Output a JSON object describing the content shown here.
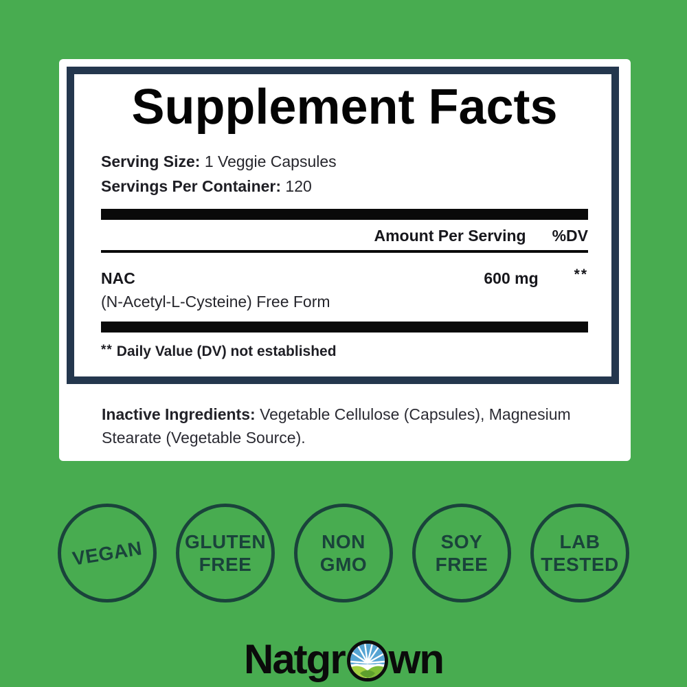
{
  "colors": {
    "background": "#48ac50",
    "panel_border": "#24374e",
    "badge": "#1a433b",
    "bar": "#0a0a0a"
  },
  "supplement_panel": {
    "title": "Supplement Facts",
    "serving_size": {
      "label": "Serving Size:",
      "value": "1 Veggie Capsules"
    },
    "servings_per_container": {
      "label": "Servings Per Container:",
      "value": "120"
    },
    "columns": {
      "amount": "Amount Per Serving",
      "dv": "%DV"
    },
    "rows": [
      {
        "name": "NAC",
        "description": "(N-Acetyl-L-Cysteine) Free Form",
        "amount": "600 mg",
        "dv": "**"
      }
    ],
    "footnote_marker": "**",
    "footnote_text": "Daily Value (DV) not established"
  },
  "inactive_ingredients": {
    "label": "Inactive Ingredients:",
    "text": "Vegetable Cellulose (Capsules), Magnesium Stearate (Vegetable Source)."
  },
  "badges": [
    {
      "lines": [
        "VEGAN"
      ],
      "rotate": -9
    },
    {
      "lines": [
        "GLUTEN",
        "FREE"
      ],
      "rotate": 0
    },
    {
      "lines": [
        "NON",
        "GMO"
      ],
      "rotate": 0
    },
    {
      "lines": [
        "SOY",
        "FREE"
      ],
      "rotate": 0
    },
    {
      "lines": [
        "LAB",
        "TESTED"
      ],
      "rotate": 0
    }
  ],
  "brand": {
    "name": "Natgrown",
    "prefix": "Natgr",
    "suffix": "wn",
    "icon": "sunrise-over-hills-icon"
  }
}
